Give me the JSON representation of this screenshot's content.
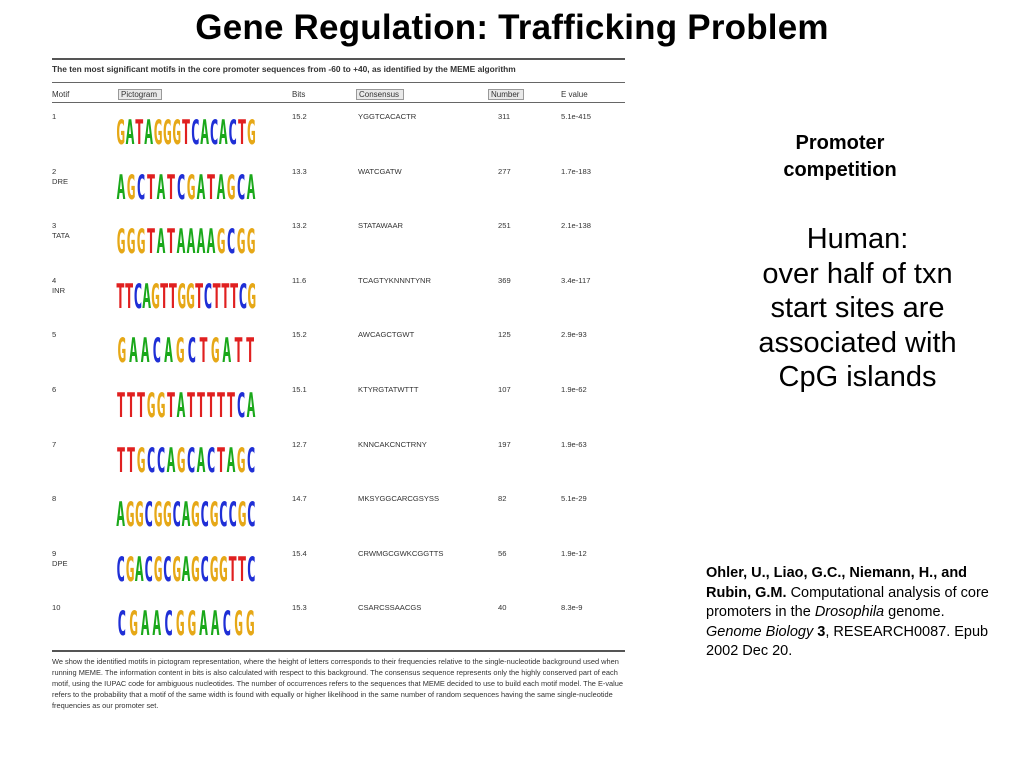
{
  "title": "Gene Regulation: Trafficking Problem",
  "table": {
    "caption": "The ten most significant motifs in the core promoter sequences from -60 to +40, as identified by the MEME algorithm",
    "headers": {
      "motif": "Motif",
      "pictogram": "Pictogram",
      "bits": "Bits",
      "consensus": "Consensus",
      "number": "Number",
      "evalue": "E value"
    },
    "rows": [
      {
        "id": "1",
        "name": "",
        "bits": "15.2",
        "consensus": "YGGTCACACTR",
        "number": "311",
        "evalue": "5.1e-415",
        "logo": "GATAGGGTCACACTG"
      },
      {
        "id": "2",
        "name": "DRE",
        "bits": "13.3",
        "consensus": "WATCGATW",
        "number": "277",
        "evalue": "1.7e-183",
        "logo": "AGCTATCGATAGCA"
      },
      {
        "id": "3",
        "name": "TATA",
        "bits": "13.2",
        "consensus": "STATAWAAR",
        "number": "251",
        "evalue": "2.1e-138",
        "logo": "GGGTATAAAAGCGG"
      },
      {
        "id": "4",
        "name": "INR",
        "bits": "11.6",
        "consensus": "TCAGTYKNNNTYNR",
        "number": "369",
        "evalue": "3.4e-117",
        "logo": "TTCAGTTGGTCTTTCG"
      },
      {
        "id": "5",
        "name": "",
        "bits": "15.2",
        "consensus": "AWCAGCTGWT",
        "number": "125",
        "evalue": "2.9e-93",
        "logo": "GAACAGCTGATT"
      },
      {
        "id": "6",
        "name": "",
        "bits": "15.1",
        "consensus": "KTYRGTATWTTT",
        "number": "107",
        "evalue": "1.9e-62",
        "logo": "TTTGGTATTTTTCA"
      },
      {
        "id": "7",
        "name": "",
        "bits": "12.7",
        "consensus": "KNNCAKCNCTRNY",
        "number": "197",
        "evalue": "1.9e-63",
        "logo": "TTGCCAGCACTAGC"
      },
      {
        "id": "8",
        "name": "",
        "bits": "14.7",
        "consensus": "MKSYGGCARCGSYSS",
        "number": "82",
        "evalue": "5.1e-29",
        "logo": "AGGCGGCAGCGCCGC"
      },
      {
        "id": "9",
        "name": "DPE",
        "bits": "15.4",
        "consensus": "CRWMGCGWKCGGTTS",
        "number": "56",
        "evalue": "1.9e-12",
        "logo": "CGACGCGAGCGGTTC"
      },
      {
        "id": "10",
        "name": "",
        "bits": "15.3",
        "consensus": "CSARCSSAACGS",
        "number": "40",
        "evalue": "8.3e-9",
        "logo": "CGAACGGAACGG"
      }
    ],
    "footnote": "We show the identified motifs in pictogram representation, where the height of letters corresponds to their frequencies relative to the single-nucleotide background used when running MEME. The information content in bits is also calculated with respect to this background. The consensus sequence represents only the highly conserved part of each motif, using the IUPAC code for ambiguous nucleotides. The number of occurrences refers to the sequences that MEME decided to use to build each motif model. The E-value refers to the probability that a motif of the same width is found with equally or higher likelihood in the same number of random sequences having the same single-nucleotide frequencies as our promoter set."
  },
  "promoter": [
    "Promoter",
    "competition"
  ],
  "human": [
    "Human:",
    "over half of txn",
    "start sites are",
    "associated with",
    "CpG islands"
  ],
  "citation": {
    "authors": "Ohler, U., Liao, G.C., Niemann, H., and Rubin, G.M.",
    "title": " Computational analysis of core promoters in the ",
    "species": "Drosophila",
    "after_species": " genome. ",
    "journal": "Genome Biology",
    "space": " ",
    "volume": "3",
    "rest": ", RESEARCH0087. Epub 2002 Dec 20."
  },
  "nucleotide_colors": {
    "A": "#1aa81a",
    "C": "#1f2fd6",
    "G": "#e6a817",
    "T": "#e02020"
  }
}
